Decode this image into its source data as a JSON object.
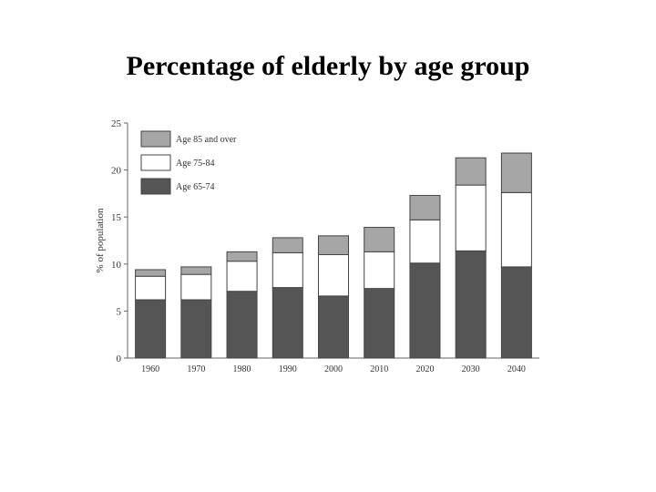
{
  "chart_data": {
    "type": "bar",
    "stacked": true,
    "title": "Percentage of elderly by age group",
    "ylabel": "% of population",
    "xlabel": "",
    "ylim": [
      0,
      25
    ],
    "yticks": [
      "0",
      "5",
      "10",
      "15",
      "20",
      "25"
    ],
    "categories": [
      "1960",
      "1970",
      "1980",
      "1990",
      "2000",
      "2010",
      "2020",
      "2030",
      "2040"
    ],
    "series": [
      {
        "name": "Age 65-74",
        "color": "#555555",
        "values": [
          6.2,
          6.2,
          7.1,
          7.5,
          6.6,
          7.4,
          10.1,
          11.4,
          9.7
        ]
      },
      {
        "name": "Age 75-84",
        "color": "#ffffff",
        "values": [
          2.5,
          2.7,
          3.2,
          3.7,
          4.4,
          3.9,
          4.6,
          7.0,
          7.9
        ]
      },
      {
        "name": "Age 85 and over",
        "color": "#a6a6a6",
        "values": [
          0.7,
          0.8,
          1.0,
          1.6,
          2.0,
          2.6,
          2.6,
          2.9,
          4.2
        ]
      }
    ],
    "legend": {
      "position": "top-left",
      "order": [
        "Age 85 and over",
        "Age 75-84",
        "Age 65-74"
      ]
    },
    "grid": false
  }
}
